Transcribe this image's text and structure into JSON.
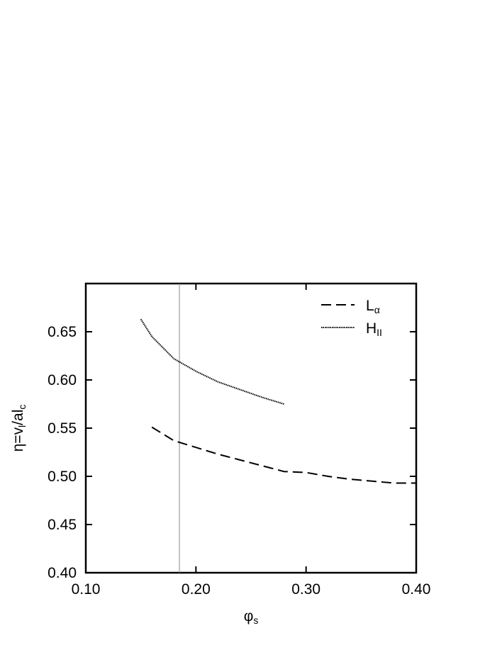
{
  "chart_data": {
    "type": "line",
    "xlabel": [
      "φ",
      "s"
    ],
    "xlabel_sub": [
      false,
      true
    ],
    "ylabel": [
      "η=v",
      "l",
      "/al",
      "c"
    ],
    "ylabel_sub": [
      false,
      true,
      false,
      true
    ],
    "xlim": [
      0.1,
      0.4
    ],
    "xticks": [
      {
        "value": 0.1,
        "label": "0.10"
      },
      {
        "value": 0.2,
        "label": "0.20"
      },
      {
        "value": 0.3,
        "label": "0.30"
      },
      {
        "value": 0.4,
        "label": "0.40"
      }
    ],
    "ylim": [
      0.4,
      0.7
    ],
    "yticks": [
      {
        "value": 0.4,
        "label": "0.40"
      },
      {
        "value": 0.45,
        "label": "0.45"
      },
      {
        "value": 0.5,
        "label": "0.50"
      },
      {
        "value": 0.55,
        "label": "0.55"
      },
      {
        "value": 0.6,
        "label": "0.60"
      },
      {
        "value": 0.65,
        "label": "0.65"
      }
    ],
    "reference_line_x": 0.185,
    "legend": "top-right",
    "series": [
      {
        "name": "L",
        "name_sub": "α",
        "color": "#000000",
        "dash": "dashed",
        "x": [
          0.16,
          0.18,
          0.2,
          0.22,
          0.24,
          0.26,
          0.28,
          0.3,
          0.32,
          0.34,
          0.36,
          0.38,
          0.4
        ],
        "values": [
          0.551,
          0.537,
          0.53,
          0.523,
          0.517,
          0.511,
          0.505,
          0.504,
          0.5,
          0.497,
          0.495,
          0.493,
          0.493
        ]
      },
      {
        "name": "H",
        "name_sub": "II",
        "color": "#000000",
        "dash": "dotted",
        "x": [
          0.15,
          0.16,
          0.18,
          0.2,
          0.22,
          0.24,
          0.26,
          0.28
        ],
        "values": [
          0.663,
          0.645,
          0.622,
          0.609,
          0.598,
          0.59,
          0.582,
          0.575
        ]
      }
    ]
  }
}
